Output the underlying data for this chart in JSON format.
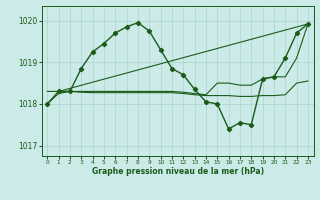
{
  "xlabel": "Graphe pression niveau de la mer (hPa)",
  "background_color": "#cceae7",
  "grid_color": "#aad4d0",
  "line_color": "#1a5c1a",
  "xlim": [
    -0.5,
    23.5
  ],
  "ylim": [
    1016.75,
    1020.35
  ],
  "yticks": [
    1017,
    1018,
    1019,
    1020
  ],
  "xticks": [
    0,
    1,
    2,
    3,
    4,
    5,
    6,
    7,
    8,
    9,
    10,
    11,
    12,
    13,
    14,
    15,
    16,
    17,
    18,
    19,
    20,
    21,
    22,
    23
  ],
  "series1_x": [
    0,
    1,
    2,
    3,
    4,
    5,
    6,
    7,
    8,
    9,
    10,
    11,
    12,
    13,
    14,
    15,
    16,
    17,
    18,
    19,
    20,
    21,
    22,
    23
  ],
  "series1_y": [
    1018.0,
    1018.3,
    1018.3,
    1018.85,
    1019.25,
    1019.45,
    1019.7,
    1019.85,
    1019.95,
    1019.75,
    1019.3,
    1018.85,
    1018.7,
    1018.35,
    1018.05,
    1018.0,
    1017.4,
    1017.55,
    1017.5,
    1018.6,
    1018.65,
    1019.1,
    1019.7,
    1019.92
  ],
  "series2_x": [
    1,
    23
  ],
  "series2_y": [
    1018.3,
    1019.92
  ],
  "series3_x": [
    0,
    1,
    2,
    3,
    4,
    5,
    6,
    7,
    8,
    9,
    10,
    11,
    12,
    13,
    14,
    15,
    16,
    17,
    18,
    19,
    20,
    21,
    22,
    23
  ],
  "series3_y": [
    1018.3,
    1018.3,
    1018.3,
    1018.3,
    1018.3,
    1018.3,
    1018.3,
    1018.3,
    1018.3,
    1018.3,
    1018.3,
    1018.3,
    1018.28,
    1018.25,
    1018.22,
    1018.5,
    1018.5,
    1018.45,
    1018.45,
    1018.6,
    1018.65,
    1018.65,
    1019.1,
    1019.92
  ],
  "series4_x": [
    0,
    1,
    2,
    3,
    4,
    5,
    6,
    7,
    8,
    9,
    10,
    11,
    12,
    13,
    14,
    15,
    16,
    17,
    18,
    19,
    20,
    21,
    22,
    23
  ],
  "series4_y": [
    1018.0,
    1018.25,
    1018.3,
    1018.28,
    1018.27,
    1018.27,
    1018.27,
    1018.27,
    1018.27,
    1018.27,
    1018.27,
    1018.27,
    1018.25,
    1018.22,
    1018.2,
    1018.2,
    1018.2,
    1018.18,
    1018.18,
    1018.2,
    1018.2,
    1018.22,
    1018.5,
    1018.55
  ]
}
